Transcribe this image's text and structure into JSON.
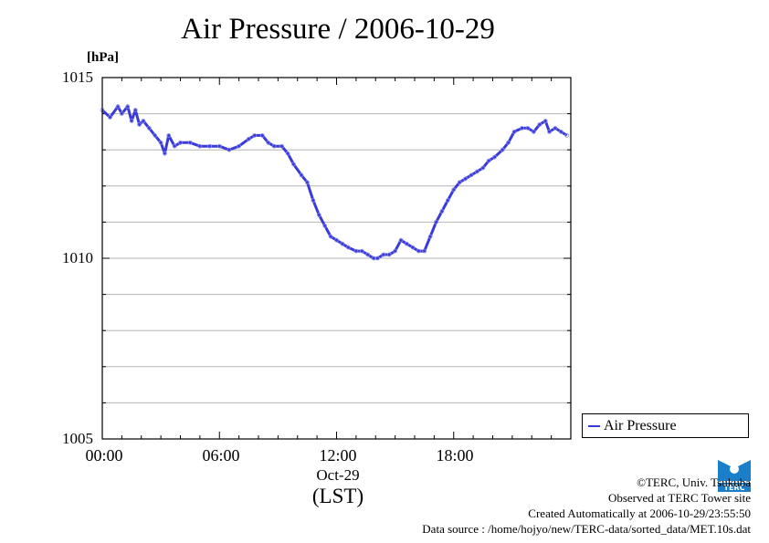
{
  "chart_data": {
    "type": "line",
    "title": "Air Pressure / 2006-10-29",
    "ylabel": "[hPa]",
    "xlabel": "(LST)",
    "date_label": "Oct-29",
    "ylim": [
      1005,
      1015
    ],
    "xlim": [
      0,
      24
    ],
    "y_ticks": [
      "1015",
      "1010",
      "1005"
    ],
    "x_ticks": [
      "00:00",
      "06:00",
      "12:00",
      "18:00"
    ],
    "grid": true,
    "legend_position": "right-bottom, outside plot",
    "series": [
      {
        "name": "Air Pressure",
        "color": "#3a3ad8",
        "x": [
          0.0,
          0.4,
          0.8,
          1.0,
          1.3,
          1.5,
          1.7,
          1.9,
          2.1,
          2.4,
          2.7,
          3.0,
          3.2,
          3.4,
          3.7,
          4.0,
          4.5,
          5.0,
          5.5,
          6.0,
          6.5,
          7.0,
          7.5,
          7.8,
          8.2,
          8.5,
          8.8,
          9.2,
          9.5,
          9.8,
          10.2,
          10.5,
          10.8,
          11.1,
          11.4,
          11.7,
          12.0,
          12.3,
          12.6,
          13.0,
          13.3,
          13.6,
          13.9,
          14.1,
          14.4,
          14.7,
          15.0,
          15.3,
          15.6,
          15.9,
          16.2,
          16.5,
          16.8,
          17.1,
          17.4,
          17.7,
          18.0,
          18.3,
          18.6,
          18.9,
          19.2,
          19.5,
          19.8,
          20.1,
          20.5,
          20.8,
          21.1,
          21.5,
          21.8,
          22.1,
          22.4,
          22.7,
          22.9,
          23.2,
          23.5,
          23.8
        ],
        "y": [
          1014.1,
          1013.9,
          1014.2,
          1014.0,
          1014.2,
          1013.8,
          1014.1,
          1013.7,
          1013.8,
          1013.6,
          1013.4,
          1013.2,
          1012.9,
          1013.4,
          1013.1,
          1013.2,
          1013.2,
          1013.1,
          1013.1,
          1013.1,
          1013.0,
          1013.1,
          1013.3,
          1013.4,
          1013.4,
          1013.2,
          1013.1,
          1013.1,
          1012.9,
          1012.6,
          1012.3,
          1012.1,
          1011.6,
          1011.2,
          1010.9,
          1010.6,
          1010.5,
          1010.4,
          1010.3,
          1010.2,
          1010.2,
          1010.1,
          1010.0,
          1010.0,
          1010.1,
          1010.1,
          1010.2,
          1010.5,
          1010.4,
          1010.3,
          1010.2,
          1010.2,
          1010.6,
          1011.0,
          1011.3,
          1011.6,
          1011.9,
          1012.1,
          1012.2,
          1012.3,
          1012.4,
          1012.5,
          1012.7,
          1012.8,
          1013.0,
          1013.2,
          1013.5,
          1013.6,
          1013.6,
          1013.5,
          1013.7,
          1013.8,
          1013.5,
          1013.6,
          1013.5,
          1013.4
        ]
      }
    ]
  },
  "footer": {
    "copyright": "©TERC, Univ. Tsukuba",
    "observed": "Observed at TERC Tower site",
    "created": "Created Automatically at 2006-10-29/23:55:50",
    "source": "Data source : /home/hojyo/new/TERC-data/sorted_data/MET.10s.dat"
  },
  "logo": {
    "icon": "terc-logo-icon",
    "text": "TERC",
    "color": "#1a7fc8"
  }
}
